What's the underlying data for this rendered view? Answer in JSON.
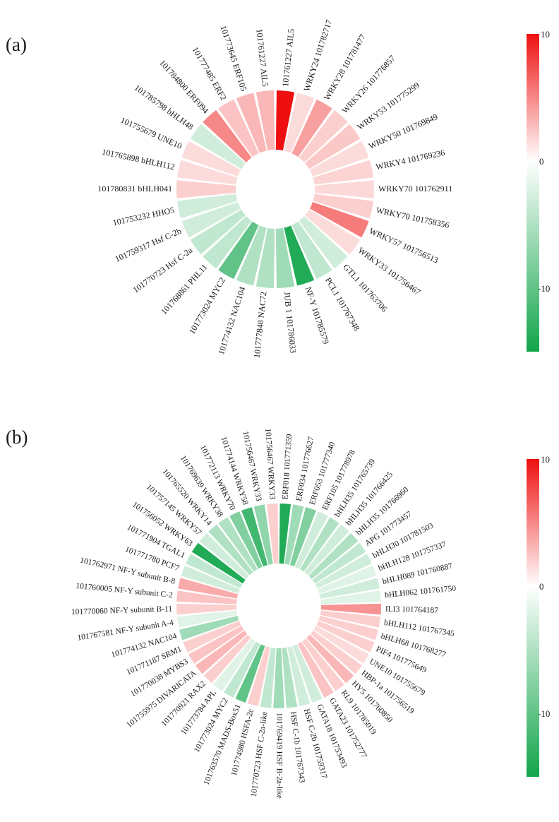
{
  "chart_data": [
    {
      "panel_label": "(a)",
      "type": "radial-heatmap",
      "colorbar": {
        "ticks": [
          "10",
          "0",
          "-10"
        ],
        "vmin": -15,
        "vmax": 10,
        "high_color": "#ee1010",
        "mid_color": "#ffffff",
        "low_color": "#12a54b"
      },
      "items": [
        {
          "label": "101761227 AIL5",
          "value": 10
        },
        {
          "label": "WRKY24 101782717",
          "value": 1.5
        },
        {
          "label": "WRKY28 101781477",
          "value": 4
        },
        {
          "label": "WRKY26 101776857",
          "value": 2
        },
        {
          "label": "WRKY53 101775299",
          "value": 2.3
        },
        {
          "label": "WRKY50 101769849",
          "value": 1.5
        },
        {
          "label": "WRKY4 101769236",
          "value": 1.8
        },
        {
          "label": "WRKY70 101762911",
          "value": 1.6
        },
        {
          "label": "WRKY70 101758356",
          "value": 2
        },
        {
          "label": "WRKY57 101756513",
          "value": 5.5
        },
        {
          "label": "WRKY33 101756467",
          "value": 1.5
        },
        {
          "label": "GTL1 101763706",
          "value": -3
        },
        {
          "label": "PCL1 101767348",
          "value": -4
        },
        {
          "label": "NF-Y 101785579",
          "value": -14
        },
        {
          "label": "JUB 1 101786033",
          "value": -6
        },
        {
          "label": "101777848 NAC72",
          "value": -5
        },
        {
          "label": "101774132 NAC104",
          "value": -5
        },
        {
          "label": "101773024 MYC2",
          "value": -10
        },
        {
          "label": "101768861 PHL11",
          "value": -4
        },
        {
          "label": "101770723 Hsf C-2a",
          "value": -4
        },
        {
          "label": "101759317 Hsf C-2b",
          "value": -3
        },
        {
          "label": "101753232 HHO5",
          "value": -3
        },
        {
          "label": "101780831 bHLH041",
          "value": 2
        },
        {
          "label": "101765898 bHLH112",
          "value": 1.5
        },
        {
          "label": "101755679 UNE10",
          "value": 1.5
        },
        {
          "label": "101785798 bHLH48",
          "value": -3
        },
        {
          "label": "101784800 ERF094",
          "value": 5
        },
        {
          "label": "101777485 ERF2",
          "value": 2.5
        },
        {
          "label": "101773645 ERF105",
          "value": 3
        },
        {
          "label": "101761227 AIL5 ",
          "value": 3
        }
      ]
    },
    {
      "panel_label": "(b)",
      "type": "radial-heatmap",
      "colorbar": {
        "ticks": [
          "10",
          "0",
          "-10"
        ],
        "vmin": -15,
        "vmax": 10,
        "high_color": "#ee1010",
        "mid_color": "#ffffff",
        "low_color": "#12a54b"
      },
      "items": [
        {
          "label": "ERF018 101771359",
          "value": -14
        },
        {
          "label": "ERF034 101776627",
          "value": -6
        },
        {
          "label": "ERF053 101777340",
          "value": -8
        },
        {
          "label": "ERF105 101778978",
          "value": -3
        },
        {
          "label": "bHLH35 101765739",
          "value": -5
        },
        {
          "label": "bHLH35 101766425",
          "value": -3
        },
        {
          "label": "bHLH35 101766960",
          "value": -5
        },
        {
          "label": "APG 101773457",
          "value": -4
        },
        {
          "label": "bHLH30 101781503",
          "value": -3
        },
        {
          "label": "bHLH128 101757337",
          "value": -2
        },
        {
          "label": "bHLH089 101760887",
          "value": -3
        },
        {
          "label": "bHLH062 101761750",
          "value": -2
        },
        {
          "label": "ILI3 101764187",
          "value": 4.5
        },
        {
          "label": "bHLH112 101767345",
          "value": 2
        },
        {
          "label": "bHLH68 101768277",
          "value": 2
        },
        {
          "label": "PIF4 101775649",
          "value": 2
        },
        {
          "label": "UNE10 101755679",
          "value": 1.5
        },
        {
          "label": "HBP-1a 101756519",
          "value": 2
        },
        {
          "label": "HY5 101760850",
          "value": 3
        },
        {
          "label": "RL9 101785019",
          "value": 2
        },
        {
          "label": "GATA23 101752777",
          "value": 2.5
        },
        {
          "label": "GATA18 101753493",
          "value": -3
        },
        {
          "label": "HSF C-2b 101759317",
          "value": -3
        },
        {
          "label": "HSF C-1b 101767343",
          "value": -5
        },
        {
          "label": "101769419 HSF B-2a-like",
          "value": -6
        },
        {
          "label": "101770723 HSF C-2a-like",
          "value": -4
        },
        {
          "label": "101774980 HSFA-2c",
          "value": 2
        },
        {
          "label": "101763570 MADS-Box51",
          "value": -10
        },
        {
          "label": "101773024 MYC2",
          "value": -4
        },
        {
          "label": "101773784 APL",
          "value": -2
        },
        {
          "label": "101770921 RAX2",
          "value": 2
        },
        {
          "label": "101755975 DIVARICATA",
          "value": 3
        },
        {
          "label": "101770038 MYBS3",
          "value": 2.5
        },
        {
          "label": "101771187 SRM1",
          "value": 2
        },
        {
          "label": "101774132 NAC104",
          "value": -6
        },
        {
          "label": "101767581 NF-Y subunit A-4",
          "value": -2
        },
        {
          "label": "101770060 NF-Y subunit B-11",
          "value": 2
        },
        {
          "label": "101760005 NF-Y subunit C-2",
          "value": 2.5
        },
        {
          "label": "101762971 NF-Y subunit B-8",
          "value": 3.5
        },
        {
          "label": "101771780 PCF7",
          "value": -3
        },
        {
          "label": "101771904 TGAL1",
          "value": -4
        },
        {
          "label": "101756052 WRKY63",
          "value": -14
        },
        {
          "label": "101757145 WRKY57",
          "value": -3
        },
        {
          "label": "101765520 WRKY14",
          "value": -5
        },
        {
          "label": "101769639 WRKY38",
          "value": -5
        },
        {
          "label": "101772113 WRKY70",
          "value": -8
        },
        {
          "label": "101774144 WRKY58",
          "value": -12
        },
        {
          "label": "101756467 WRKY33",
          "value": -7
        },
        {
          "label": "101756467 WRKY33 ",
          "value": 2
        }
      ]
    }
  ]
}
